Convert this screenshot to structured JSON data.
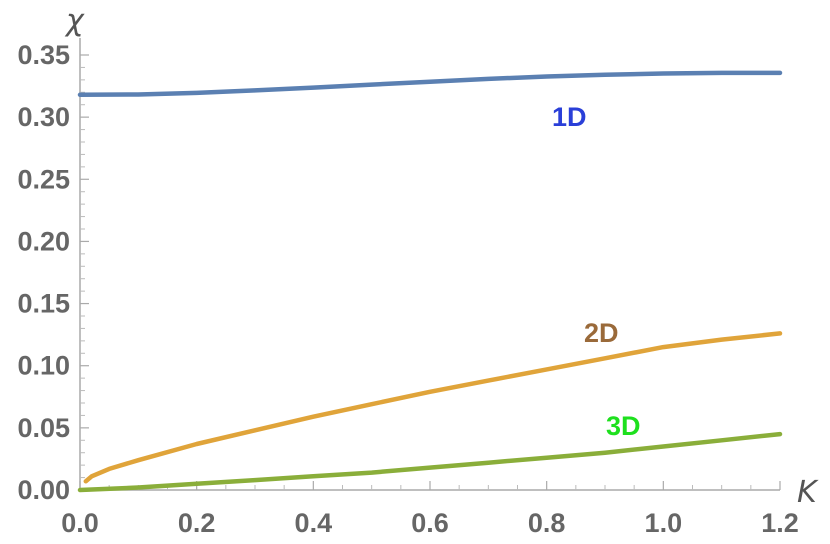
{
  "chart_data": {
    "type": "line",
    "title": "",
    "xlabel": "K",
    "ylabel": "χ",
    "xlim": [
      0,
      1.2
    ],
    "ylim": [
      0,
      0.35
    ],
    "x_ticks": [
      "0.0",
      "0.2",
      "0.4",
      "0.6",
      "0.8",
      "1.0",
      "1.2"
    ],
    "y_ticks": [
      "0.00",
      "0.05",
      "0.10",
      "0.15",
      "0.20",
      "0.25",
      "0.30",
      "0.35"
    ],
    "grid": false,
    "series": [
      {
        "name": "1D",
        "color": "#5b80b2",
        "label_color": "#2a3fd8",
        "x": [
          0.0,
          0.1,
          0.2,
          0.3,
          0.4,
          0.5,
          0.6,
          0.7,
          0.8,
          0.9,
          1.0,
          1.1,
          1.2
        ],
        "y": [
          0.318,
          0.3182,
          0.3195,
          0.3215,
          0.3238,
          0.3262,
          0.3285,
          0.3308,
          0.3327,
          0.3341,
          0.3351,
          0.3356,
          0.3356
        ]
      },
      {
        "name": "2D",
        "color": "#e0a43a",
        "label_color": "#9a6a3a",
        "x": [
          0.01,
          0.02,
          0.05,
          0.1,
          0.2,
          0.3,
          0.4,
          0.5,
          0.6,
          0.7,
          0.8,
          0.9,
          1.0,
          1.1,
          1.2
        ],
        "y": [
          0.007,
          0.011,
          0.017,
          0.024,
          0.037,
          0.048,
          0.059,
          0.069,
          0.079,
          0.088,
          0.097,
          0.106,
          0.115,
          0.121,
          0.126
        ]
      },
      {
        "name": "3D",
        "color": "#8aae3a",
        "label_color": "#1ee01e",
        "x": [
          0.0,
          0.1,
          0.2,
          0.3,
          0.4,
          0.5,
          0.6,
          0.7,
          0.8,
          0.9,
          1.0,
          1.1,
          1.2
        ],
        "y": [
          0.0,
          0.002,
          0.005,
          0.008,
          0.011,
          0.014,
          0.018,
          0.022,
          0.026,
          0.03,
          0.035,
          0.04,
          0.045
        ]
      }
    ]
  }
}
